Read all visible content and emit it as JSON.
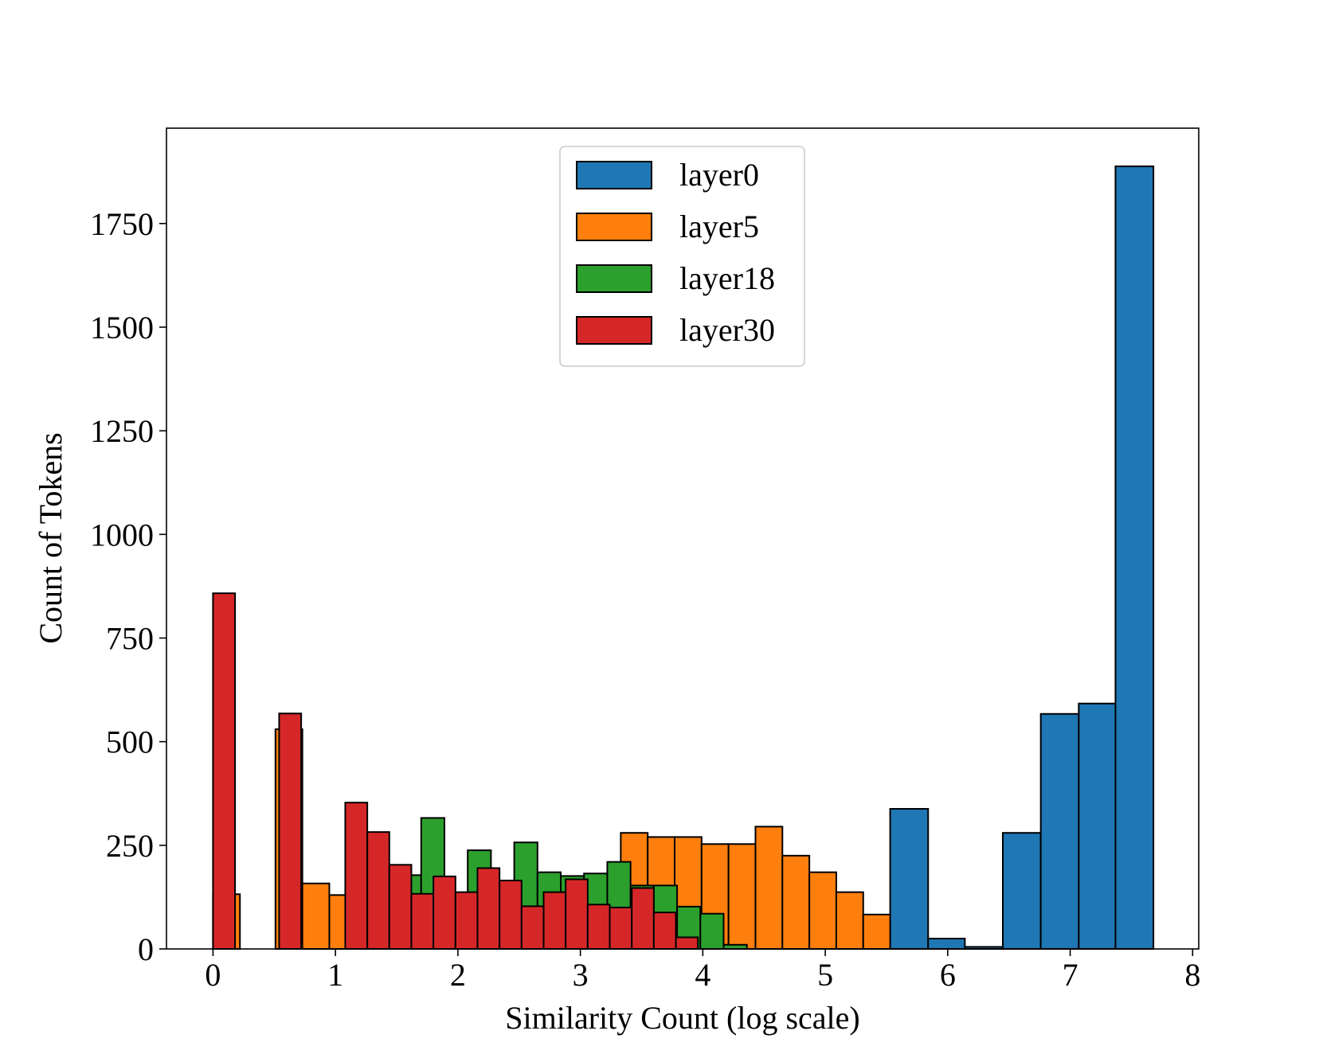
{
  "chart_data": {
    "type": "bar",
    "subtype": "overlaid-histogram",
    "title": "",
    "xlabel": "Similarity Count (log scale)",
    "ylabel": "Count of Tokens",
    "xlim": [
      -0.38,
      8.05
    ],
    "ylim": [
      0,
      1980
    ],
    "xticks": [
      0,
      1,
      2,
      3,
      4,
      5,
      6,
      7,
      8
    ],
    "yticks": [
      0,
      250,
      500,
      750,
      1000,
      1250,
      1500,
      1750
    ],
    "grid": false,
    "legend_position": "top-center",
    "series": [
      {
        "name": "layer0",
        "color": "#1f77b4",
        "bins": [
          {
            "x0": 5.53,
            "x1": 5.84,
            "value": 338
          },
          {
            "x0": 5.84,
            "x1": 6.14,
            "value": 25
          },
          {
            "x0": 6.14,
            "x1": 6.45,
            "value": 5
          },
          {
            "x0": 6.45,
            "x1": 6.76,
            "value": 280
          },
          {
            "x0": 6.76,
            "x1": 7.07,
            "value": 567
          },
          {
            "x0": 7.07,
            "x1": 7.37,
            "value": 592
          },
          {
            "x0": 7.37,
            "x1": 7.68,
            "value": 1888
          }
        ]
      },
      {
        "name": "layer5",
        "color": "#ff7f0e",
        "bins": [
          {
            "x0": 0.0,
            "x1": 0.22,
            "value": 132
          },
          {
            "x0": 0.22,
            "x1": 0.51,
            "value": 0
          },
          {
            "x0": 0.51,
            "x1": 0.73,
            "value": 530
          },
          {
            "x0": 0.73,
            "x1": 0.95,
            "value": 158
          },
          {
            "x0": 0.95,
            "x1": 1.17,
            "value": 130
          },
          {
            "x0": 3.33,
            "x1": 3.55,
            "value": 280
          },
          {
            "x0": 3.55,
            "x1": 3.77,
            "value": 270
          },
          {
            "x0": 3.77,
            "x1": 3.99,
            "value": 270
          },
          {
            "x0": 3.99,
            "x1": 4.21,
            "value": 253
          },
          {
            "x0": 4.21,
            "x1": 4.43,
            "value": 253
          },
          {
            "x0": 4.43,
            "x1": 4.65,
            "value": 295
          },
          {
            "x0": 4.65,
            "x1": 4.87,
            "value": 225
          },
          {
            "x0": 4.87,
            "x1": 5.09,
            "value": 185
          },
          {
            "x0": 5.09,
            "x1": 5.31,
            "value": 137
          },
          {
            "x0": 5.31,
            "x1": 5.53,
            "value": 83
          }
        ]
      },
      {
        "name": "layer18",
        "color": "#2ca02c",
        "bins": [
          {
            "x0": 1.51,
            "x1": 1.7,
            "value": 178
          },
          {
            "x0": 1.7,
            "x1": 1.89,
            "value": 316
          },
          {
            "x0": 2.08,
            "x1": 2.27,
            "value": 238
          },
          {
            "x0": 2.46,
            "x1": 2.65,
            "value": 257
          },
          {
            "x0": 2.65,
            "x1": 2.84,
            "value": 185
          },
          {
            "x0": 2.84,
            "x1": 3.03,
            "value": 176
          },
          {
            "x0": 3.03,
            "x1": 3.22,
            "value": 182
          },
          {
            "x0": 3.22,
            "x1": 3.41,
            "value": 210
          },
          {
            "x0": 3.41,
            "x1": 3.6,
            "value": 153
          },
          {
            "x0": 3.6,
            "x1": 3.79,
            "value": 153
          },
          {
            "x0": 3.79,
            "x1": 3.98,
            "value": 102
          },
          {
            "x0": 3.98,
            "x1": 4.17,
            "value": 85
          },
          {
            "x0": 4.17,
            "x1": 4.36,
            "value": 10
          }
        ]
      },
      {
        "name": "layer30",
        "color": "#d62728",
        "bins": [
          {
            "x0": 0.0,
            "x1": 0.18,
            "value": 858
          },
          {
            "x0": 0.54,
            "x1": 0.72,
            "value": 568
          },
          {
            "x0": 1.08,
            "x1": 1.26,
            "value": 353
          },
          {
            "x0": 1.26,
            "x1": 1.44,
            "value": 282
          },
          {
            "x0": 1.44,
            "x1": 1.62,
            "value": 203
          },
          {
            "x0": 1.62,
            "x1": 1.8,
            "value": 133
          },
          {
            "x0": 1.8,
            "x1": 1.98,
            "value": 175
          },
          {
            "x0": 1.98,
            "x1": 2.16,
            "value": 137
          },
          {
            "x0": 2.16,
            "x1": 2.34,
            "value": 195
          },
          {
            "x0": 2.34,
            "x1": 2.52,
            "value": 165
          },
          {
            "x0": 2.52,
            "x1": 2.7,
            "value": 103
          },
          {
            "x0": 2.7,
            "x1": 2.88,
            "value": 137
          },
          {
            "x0": 2.88,
            "x1": 3.06,
            "value": 168
          },
          {
            "x0": 3.06,
            "x1": 3.24,
            "value": 107
          },
          {
            "x0": 3.24,
            "x1": 3.42,
            "value": 100
          },
          {
            "x0": 3.42,
            "x1": 3.6,
            "value": 147
          },
          {
            "x0": 3.6,
            "x1": 3.78,
            "value": 88
          },
          {
            "x0": 3.78,
            "x1": 3.96,
            "value": 28
          }
        ]
      }
    ]
  }
}
